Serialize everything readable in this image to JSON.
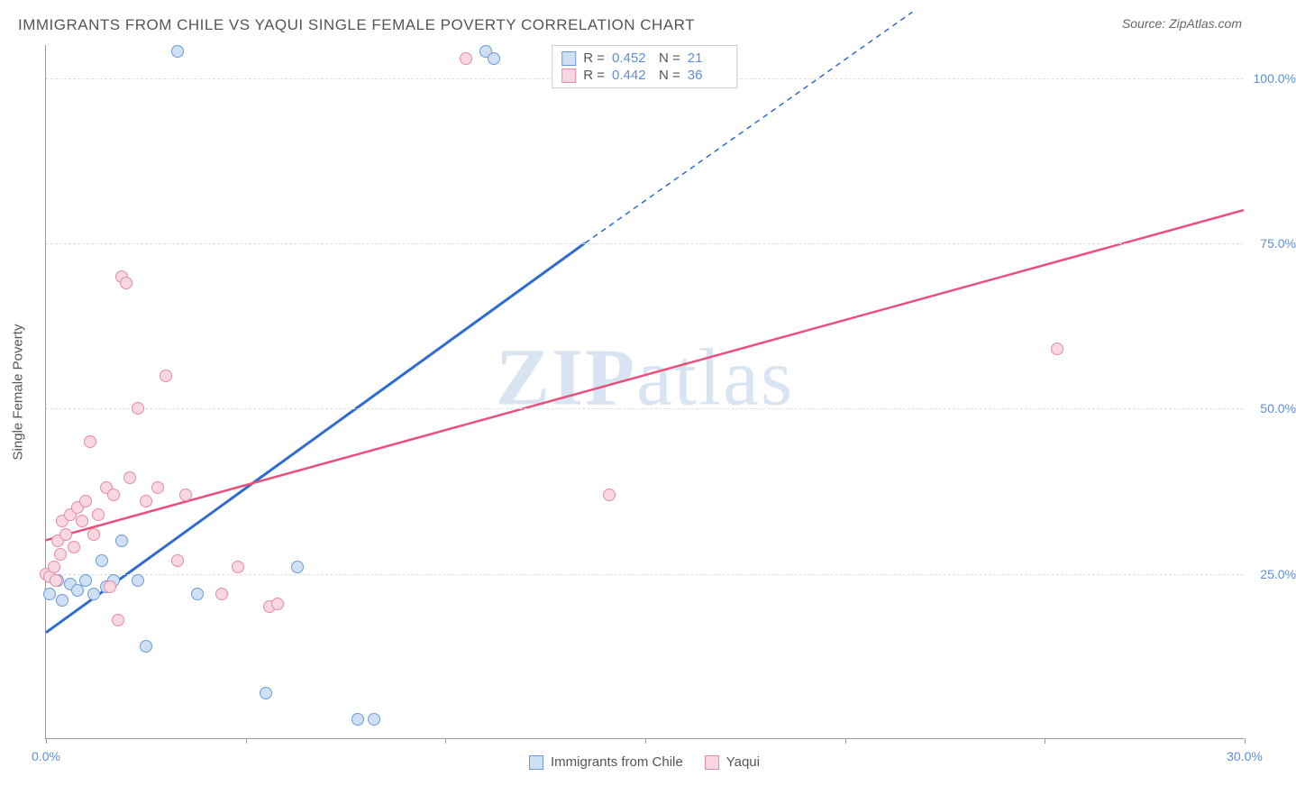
{
  "header": {
    "title": "IMMIGRANTS FROM CHILE VS YAQUI SINGLE FEMALE POVERTY CORRELATION CHART",
    "source_label": "Source:",
    "source_value": "ZipAtlas.com"
  },
  "chart": {
    "type": "scatter",
    "watermark": "ZIPatlas",
    "ylabel": "Single Female Poverty",
    "xlim": [
      0,
      30
    ],
    "ylim": [
      0,
      105
    ],
    "xticks": [
      0,
      5,
      10,
      15,
      20,
      25,
      30
    ],
    "xtick_labels": [
      "0.0%",
      "",
      "",
      "",
      "",
      "",
      "30.0%"
    ],
    "yticks": [
      25,
      50,
      75,
      100
    ],
    "ytick_labels": [
      "25.0%",
      "50.0%",
      "75.0%",
      "100.0%"
    ],
    "grid_color": "#e0e0e0",
    "axis_color": "#999999",
    "background_color": "#ffffff",
    "label_fontsize": 15,
    "tick_fontsize": 14,
    "tick_color": "#5b8fd6",
    "series": [
      {
        "name": "Immigrants from Chile",
        "marker_fill": "#cfe0f5",
        "marker_stroke": "#6a9bd8",
        "line_color": "#2f6cd0",
        "line_width": 2,
        "R": "0.452",
        "N": "21",
        "trend": {
          "x1": 0,
          "y1": 16,
          "x2": 13.5,
          "y2": 75,
          "x3": 21.7,
          "y3": 110,
          "dashed_from_x": 13.5
        },
        "points": [
          [
            0.1,
            22
          ],
          [
            0.3,
            24
          ],
          [
            0.4,
            21
          ],
          [
            0.6,
            23.5
          ],
          [
            0.8,
            22.5
          ],
          [
            1.0,
            24
          ],
          [
            1.2,
            22
          ],
          [
            1.4,
            27
          ],
          [
            1.5,
            23
          ],
          [
            1.7,
            24
          ],
          [
            1.9,
            30
          ],
          [
            2.3,
            24
          ],
          [
            2.5,
            14
          ],
          [
            3.3,
            104
          ],
          [
            3.8,
            22
          ],
          [
            5.5,
            7
          ],
          [
            6.3,
            26
          ],
          [
            7.8,
            3
          ],
          [
            8.2,
            3
          ],
          [
            11.0,
            104
          ],
          [
            11.2,
            103
          ]
        ]
      },
      {
        "name": "Yaqui",
        "marker_fill": "#f9d7e0",
        "marker_stroke": "#e58aa5",
        "line_color": "#e94f7a",
        "line_width": 2,
        "R": "0.442",
        "N": "36",
        "trend": {
          "x1": 0,
          "y1": 30,
          "x2": 30,
          "y2": 80
        },
        "points": [
          [
            0.0,
            25
          ],
          [
            0.1,
            24.5
          ],
          [
            0.2,
            26
          ],
          [
            0.25,
            24
          ],
          [
            0.3,
            30
          ],
          [
            0.35,
            28
          ],
          [
            0.4,
            33
          ],
          [
            0.5,
            31
          ],
          [
            0.6,
            34
          ],
          [
            0.7,
            29
          ],
          [
            0.8,
            35
          ],
          [
            0.9,
            33
          ],
          [
            1.0,
            36
          ],
          [
            1.1,
            45
          ],
          [
            1.2,
            31
          ],
          [
            1.3,
            34
          ],
          [
            1.5,
            38
          ],
          [
            1.6,
            23
          ],
          [
            1.7,
            37
          ],
          [
            1.8,
            18
          ],
          [
            1.9,
            70
          ],
          [
            2.0,
            69
          ],
          [
            2.1,
            39.5
          ],
          [
            2.3,
            50
          ],
          [
            2.5,
            36
          ],
          [
            2.8,
            38
          ],
          [
            3.0,
            55
          ],
          [
            3.3,
            27
          ],
          [
            3.5,
            37
          ],
          [
            4.4,
            22
          ],
          [
            4.8,
            26
          ],
          [
            5.6,
            20
          ],
          [
            5.8,
            20.5
          ],
          [
            10.5,
            103
          ],
          [
            14.1,
            37
          ],
          [
            25.3,
            59
          ]
        ]
      }
    ]
  },
  "legend": {
    "series1": "Immigrants from Chile",
    "series2": "Yaqui"
  }
}
